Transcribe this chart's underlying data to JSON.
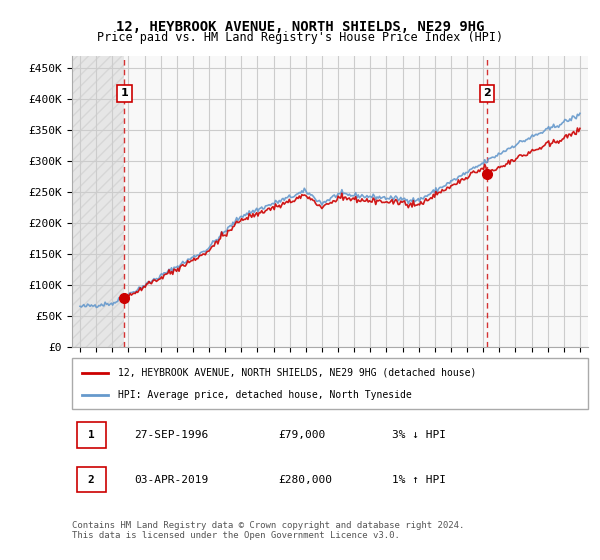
{
  "title_line1": "12, HEYBROOK AVENUE, NORTH SHIELDS, NE29 9HG",
  "title_line2": "Price paid vs. HM Land Registry's House Price Index (HPI)",
  "ylabel": "",
  "ylim": [
    0,
    470000
  ],
  "yticks": [
    0,
    50000,
    100000,
    150000,
    200000,
    250000,
    300000,
    350000,
    400000,
    450000
  ],
  "ytick_labels": [
    "£0",
    "£50K",
    "£100K",
    "£150K",
    "£200K",
    "£250K",
    "£300K",
    "£350K",
    "£400K",
    "£450K"
  ],
  "hpi_color": "#6699cc",
  "price_color": "#cc0000",
  "annotation_color": "#cc0000",
  "dashed_line_color": "#cc0000",
  "background_color": "#ffffff",
  "grid_color": "#cccccc",
  "hatch_color": "#dddddd",
  "legend_label_price": "12, HEYBROOK AVENUE, NORTH SHIELDS, NE29 9HG (detached house)",
  "legend_label_hpi": "HPI: Average price, detached house, North Tyneside",
  "annotation1_label": "1",
  "annotation1_date": "27-SEP-1996",
  "annotation1_price": "£79,000",
  "annotation1_hpi": "3% ↓ HPI",
  "annotation2_label": "2",
  "annotation2_date": "03-APR-2019",
  "annotation2_price": "£280,000",
  "annotation2_hpi": "1% ↑ HPI",
  "footer": "Contains HM Land Registry data © Crown copyright and database right 2024.\nThis data is licensed under the Open Government Licence v3.0.",
  "sale1_year": 1996.75,
  "sale1_price": 79000,
  "sale2_year": 2019.25,
  "sale2_price": 280000,
  "xlim_start": 1993.5,
  "xlim_end": 2025.5
}
